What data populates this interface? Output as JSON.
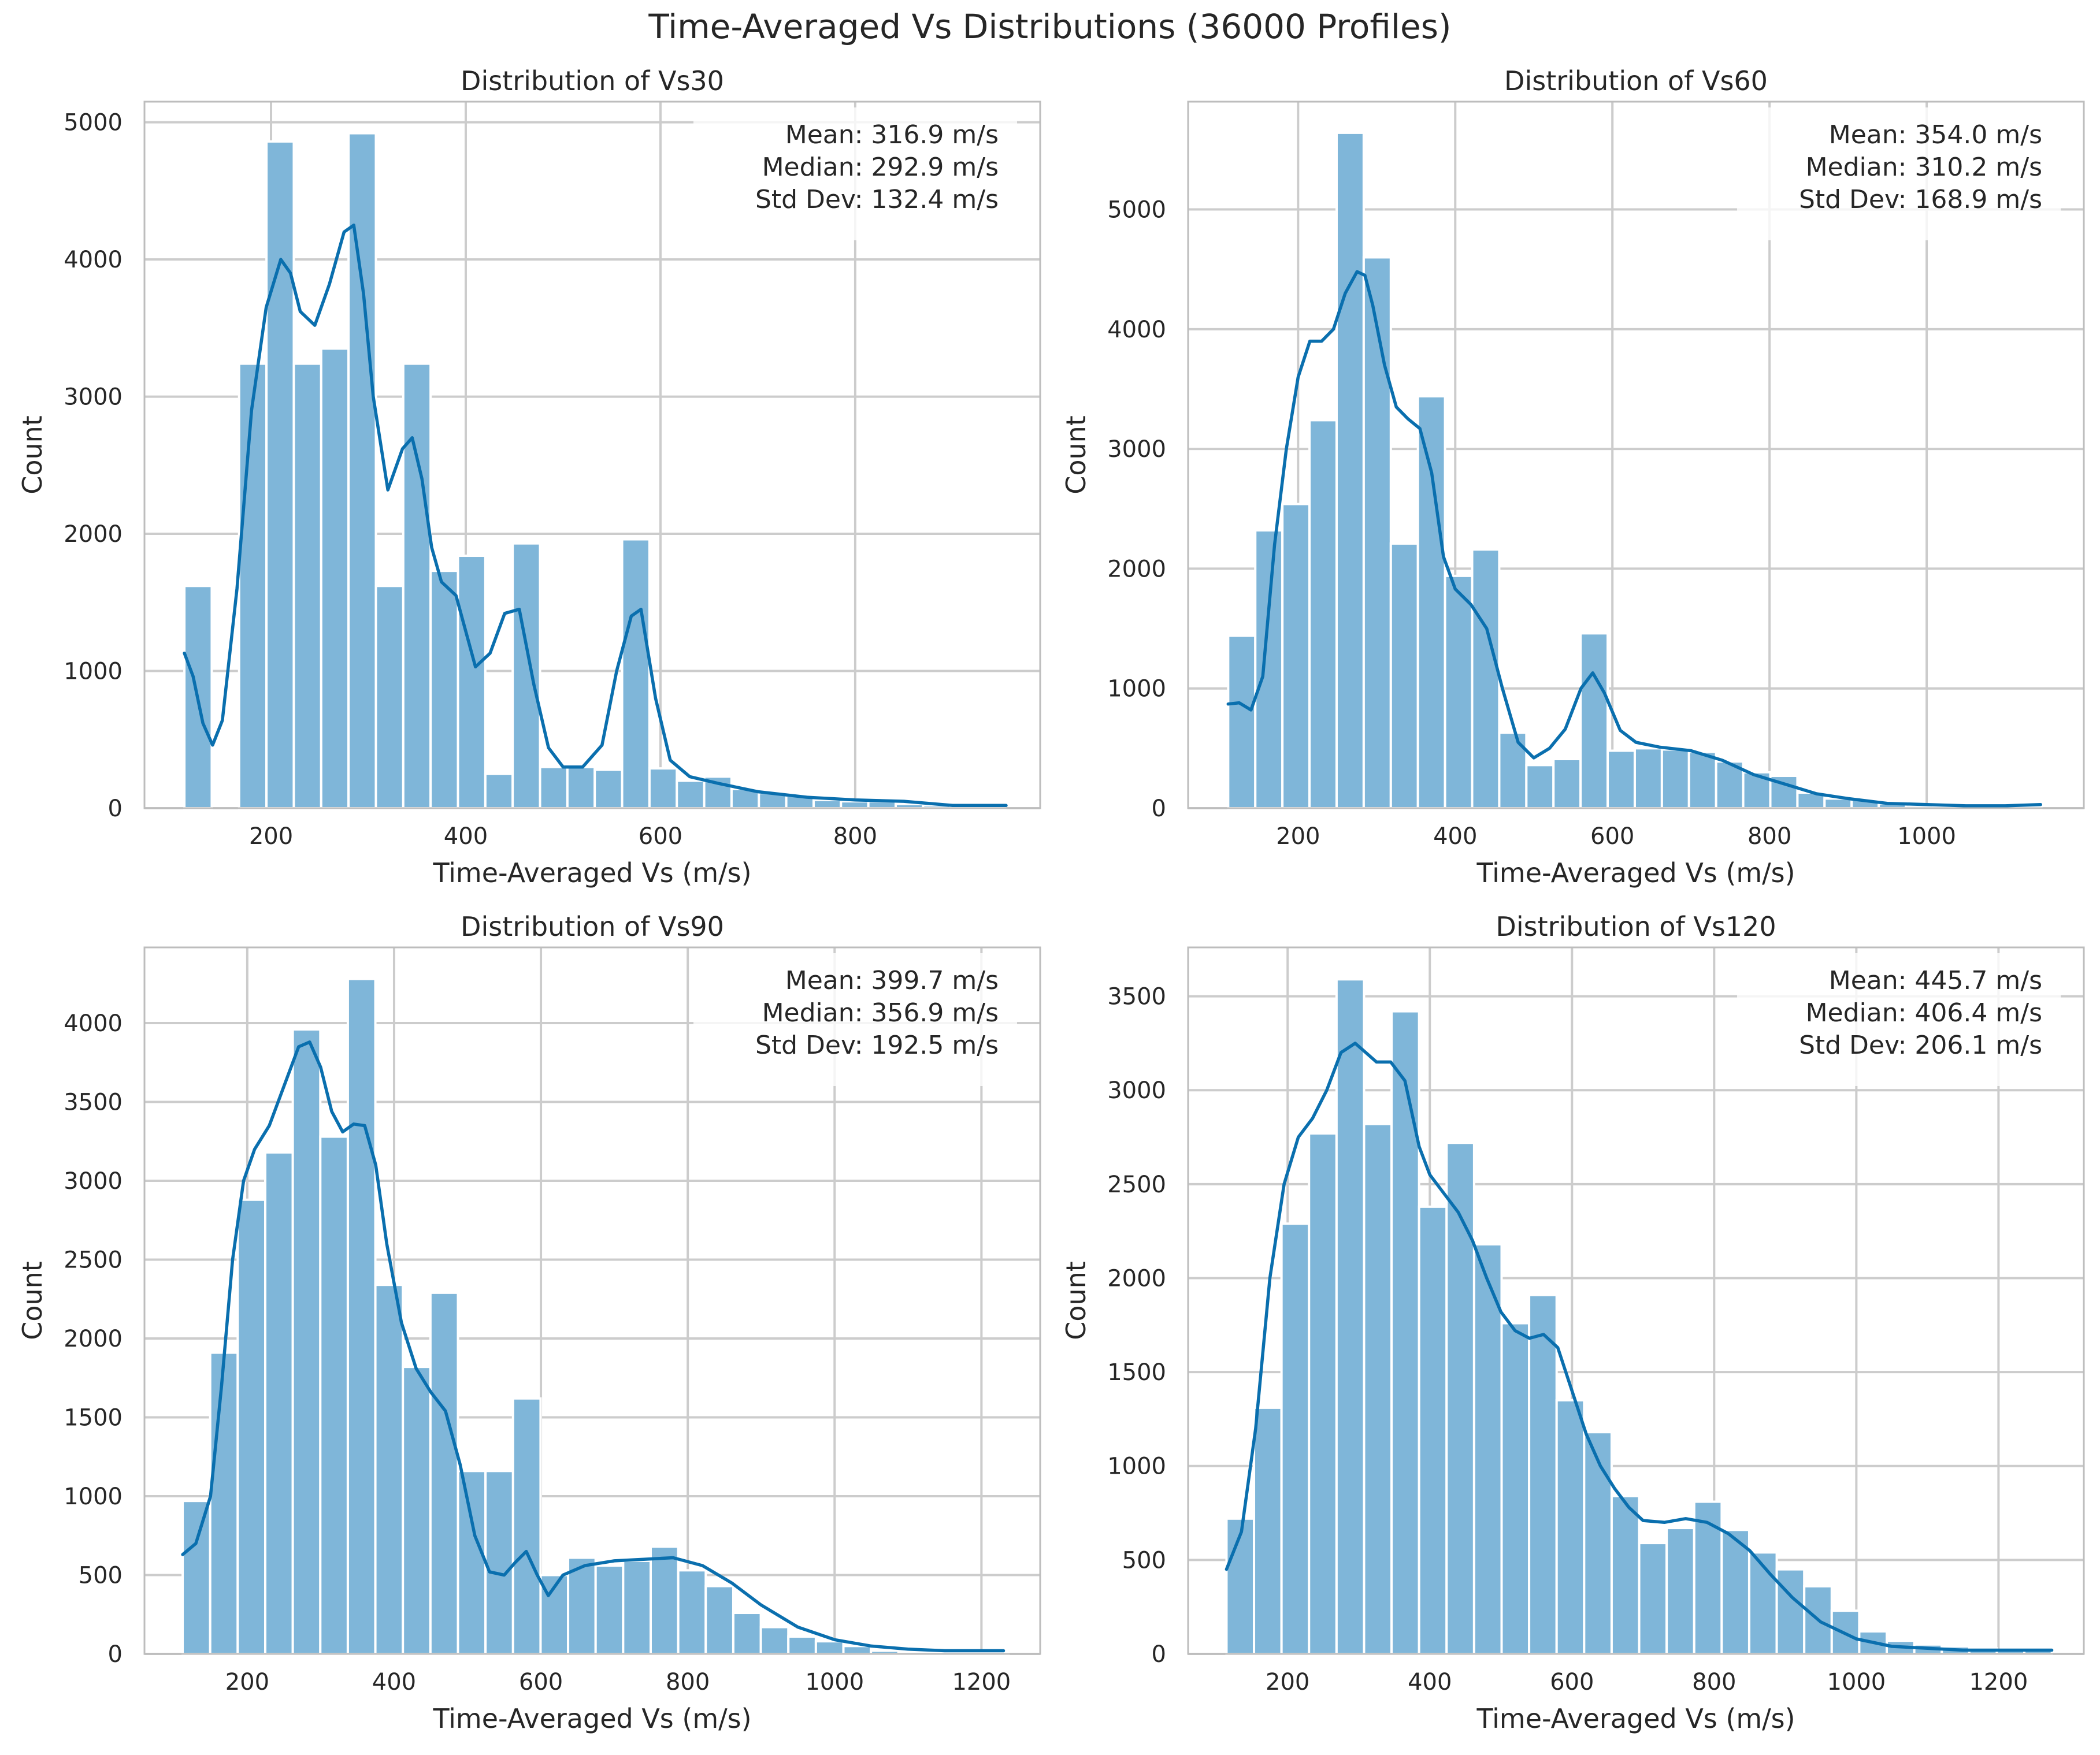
{
  "figure": {
    "suptitle": "Time-Averaged Vs Distributions (36000 Profiles)"
  },
  "colors": {
    "bar_fill": "#7fb6d9",
    "bar_edge": "#ffffff",
    "kde_line": "#0a6fae",
    "grid": "#cccccc",
    "frame": "#bdbdbd",
    "text": "#262626"
  },
  "chart_data": [
    {
      "type": "bar",
      "title": "Distribution of Vs30",
      "xlabel": "Time-Averaged Vs (m/s)",
      "ylabel": "Count",
      "xlim": [
        70,
        990
      ],
      "ylim": [
        0,
        5150
      ],
      "xticks": [
        200,
        400,
        600,
        800
      ],
      "yticks": [
        0,
        1000,
        2000,
        3000,
        4000,
        5000
      ],
      "grid": true,
      "stats": [
        "Mean: 316.9 m/s",
        "Median: 292.9 m/s",
        "Std Dev: 132.4 m/s"
      ],
      "stats_position": "top-right",
      "bin_start": 111,
      "bin_width": 28.1,
      "counts": [
        1620,
        0,
        3240,
        4860,
        3240,
        3350,
        4920,
        1620,
        3240,
        1730,
        1840,
        250,
        1930,
        300,
        300,
        280,
        1960,
        290,
        200,
        230,
        140,
        110,
        90,
        60,
        50,
        50,
        30,
        20,
        10,
        10
      ],
      "kde": {
        "x": [
          111,
          120,
          130,
          140,
          150,
          165,
          180,
          195,
          210,
          220,
          230,
          245,
          260,
          275,
          285,
          295,
          305,
          320,
          335,
          345,
          355,
          365,
          375,
          390,
          410,
          425,
          440,
          455,
          470,
          485,
          500,
          520,
          540,
          555,
          570,
          580,
          595,
          610,
          630,
          660,
          700,
          750,
          800,
          850,
          900,
          955
        ],
        "y": [
          1130,
          960,
          620,
          460,
          640,
          1600,
          2900,
          3650,
          4000,
          3900,
          3620,
          3520,
          3820,
          4200,
          4250,
          3750,
          3000,
          2320,
          2620,
          2700,
          2400,
          1900,
          1650,
          1550,
          1030,
          1130,
          1420,
          1450,
          900,
          440,
          300,
          300,
          460,
          1000,
          1400,
          1450,
          800,
          350,
          230,
          180,
          120,
          80,
          60,
          50,
          20,
          20
        ]
      }
    },
    {
      "type": "bar",
      "title": "Distribution of Vs60",
      "xlabel": "Time-Averaged Vs (m/s)",
      "ylabel": "Count",
      "xlim": [
        60,
        1200
      ],
      "ylim": [
        0,
        5900
      ],
      "xticks": [
        200,
        400,
        600,
        800,
        1000
      ],
      "yticks": [
        0,
        1000,
        2000,
        3000,
        4000,
        5000
      ],
      "grid": true,
      "stats": [
        "Mean: 354.0 m/s",
        "Median: 310.2 m/s",
        "Std Dev: 168.9 m/s"
      ],
      "stats_position": "top-right",
      "bin_start": 111,
      "bin_width": 34.5,
      "counts": [
        1440,
        2320,
        2540,
        3240,
        5640,
        4600,
        2210,
        3440,
        1940,
        2160,
        630,
        360,
        410,
        1460,
        480,
        500,
        490,
        470,
        390,
        300,
        270,
        130,
        80,
        70,
        40,
        20,
        10,
        10,
        10,
        10
      ],
      "kde": {
        "x": [
          111,
          125,
          140,
          155,
          170,
          185,
          200,
          215,
          230,
          245,
          260,
          275,
          285,
          295,
          310,
          325,
          340,
          355,
          370,
          385,
          400,
          420,
          440,
          460,
          480,
          500,
          520,
          540,
          560,
          575,
          590,
          610,
          630,
          660,
          700,
          740,
          780,
          820,
          860,
          900,
          950,
          1000,
          1050,
          1100,
          1145
        ],
        "y": [
          870,
          880,
          820,
          1100,
          2200,
          3000,
          3600,
          3900,
          3900,
          4000,
          4300,
          4480,
          4450,
          4200,
          3700,
          3350,
          3250,
          3170,
          2800,
          2100,
          1830,
          1700,
          1500,
          1000,
          550,
          420,
          500,
          660,
          1000,
          1130,
          960,
          650,
          550,
          510,
          480,
          400,
          280,
          200,
          120,
          80,
          40,
          30,
          20,
          20,
          30
        ]
      }
    },
    {
      "type": "bar",
      "title": "Distribution of Vs90",
      "xlabel": "Time-Averaged Vs (m/s)",
      "ylabel": "Count",
      "xlim": [
        60,
        1280
      ],
      "ylim": [
        0,
        4480
      ],
      "xticks": [
        200,
        400,
        600,
        800,
        1000,
        1200
      ],
      "yticks": [
        0,
        500,
        1000,
        1500,
        2000,
        2500,
        3000,
        3500,
        4000
      ],
      "grid": true,
      "stats": [
        "Mean: 399.7 m/s",
        "Median: 356.9 m/s",
        "Std Dev: 192.5 m/s"
      ],
      "stats_position": "top-right",
      "bin_start": 112,
      "bin_width": 37.5,
      "counts": [
        970,
        1910,
        2880,
        3180,
        3960,
        3280,
        4280,
        2340,
        1820,
        2290,
        1160,
        1160,
        1620,
        500,
        610,
        560,
        590,
        680,
        530,
        430,
        260,
        170,
        110,
        80,
        50,
        20,
        10,
        10,
        10,
        10
      ],
      "kde": {
        "x": [
          112,
          130,
          150,
          165,
          180,
          195,
          210,
          230,
          250,
          270,
          285,
          300,
          315,
          330,
          345,
          360,
          375,
          390,
          410,
          430,
          450,
          470,
          490,
          510,
          530,
          550,
          565,
          580,
          595,
          610,
          630,
          660,
          700,
          740,
          780,
          820,
          860,
          900,
          950,
          1000,
          1050,
          1100,
          1150,
          1200,
          1230
        ],
        "y": [
          630,
          700,
          1000,
          1700,
          2500,
          3000,
          3200,
          3350,
          3600,
          3850,
          3880,
          3720,
          3440,
          3310,
          3360,
          3350,
          3100,
          2600,
          2100,
          1810,
          1660,
          1540,
          1200,
          750,
          520,
          500,
          580,
          650,
          500,
          370,
          500,
          560,
          590,
          600,
          610,
          560,
          450,
          310,
          170,
          90,
          50,
          30,
          20,
          20,
          20
        ]
      }
    },
    {
      "type": "bar",
      "title": "Distribution of Vs120",
      "xlabel": "Time-Averaged Vs (m/s)",
      "ylabel": "Count",
      "xlim": [
        60,
        1320
      ],
      "ylim": [
        0,
        3760
      ],
      "xticks": [
        200,
        400,
        600,
        800,
        1000,
        1200
      ],
      "yticks": [
        0,
        500,
        1000,
        1500,
        2000,
        2500,
        3000,
        3500
      ],
      "grid": true,
      "stats": [
        "Mean: 445.7 m/s",
        "Median: 406.4 m/s",
        "Std Dev: 206.1 m/s"
      ],
      "stats_position": "top-right",
      "bin_start": 114,
      "bin_width": 38.7,
      "counts": [
        720,
        1310,
        2290,
        2770,
        3590,
        2820,
        3420,
        2380,
        2720,
        2180,
        1760,
        1910,
        1350,
        1180,
        840,
        590,
        670,
        810,
        660,
        540,
        450,
        360,
        230,
        120,
        70,
        50,
        40,
        30,
        20,
        20
      ],
      "kde": {
        "x": [
          114,
          135,
          155,
          175,
          195,
          215,
          235,
          255,
          275,
          295,
          310,
          325,
          345,
          365,
          385,
          400,
          420,
          440,
          460,
          480,
          500,
          520,
          540,
          560,
          580,
          600,
          620,
          640,
          660,
          680,
          700,
          730,
          760,
          790,
          820,
          850,
          880,
          910,
          950,
          1000,
          1050,
          1100,
          1150,
          1200,
          1250,
          1275
        ],
        "y": [
          450,
          650,
          1200,
          2000,
          2500,
          2750,
          2850,
          3000,
          3200,
          3250,
          3200,
          3150,
          3150,
          3050,
          2700,
          2550,
          2450,
          2350,
          2200,
          2000,
          1820,
          1720,
          1680,
          1700,
          1630,
          1400,
          1170,
          1000,
          880,
          780,
          710,
          700,
          720,
          700,
          640,
          550,
          420,
          300,
          170,
          80,
          40,
          30,
          20,
          20,
          20,
          20
        ]
      }
    }
  ]
}
